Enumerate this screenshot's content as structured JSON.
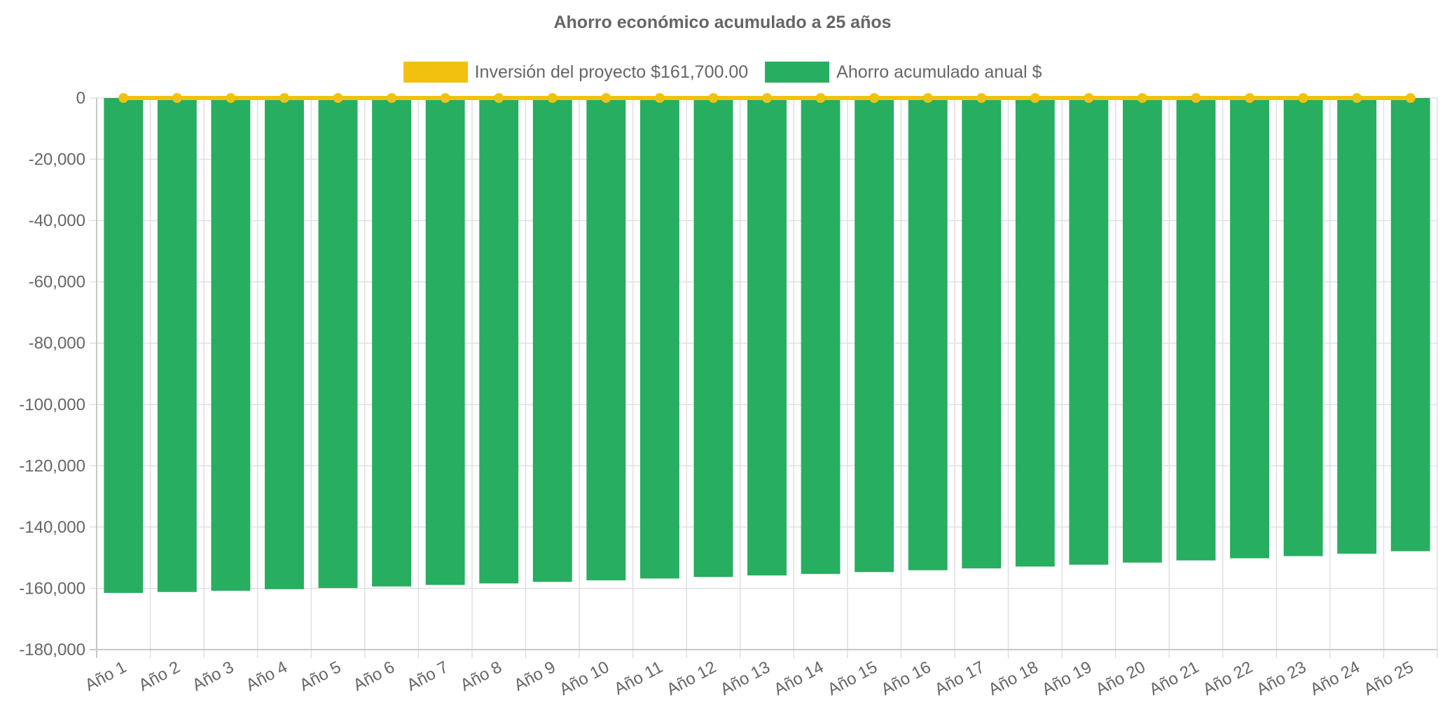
{
  "chart_data": {
    "type": "bar",
    "title": "Ahorro económico acumulado a 25 años",
    "categories": [
      "Año 1",
      "Año 2",
      "Año 3",
      "Año 4",
      "Año 5",
      "Año 6",
      "Año 7",
      "Año 8",
      "Año 9",
      "Año 10",
      "Año 11",
      "Año 12",
      "Año 13",
      "Año 14",
      "Año 15",
      "Año 16",
      "Año 17",
      "Año 18",
      "Año 19",
      "Año 20",
      "Año 21",
      "Año 22",
      "Año 23",
      "Año 24",
      "Año 25"
    ],
    "series": [
      {
        "name": "Inversión del proyecto $161,700.00",
        "type": "line",
        "color": "#f2c10f",
        "values": [
          0,
          0,
          0,
          0,
          0,
          0,
          0,
          0,
          0,
          0,
          0,
          0,
          0,
          0,
          0,
          0,
          0,
          0,
          0,
          0,
          0,
          0,
          0,
          0,
          0
        ]
      },
      {
        "name": "Ahorro acumulado anual $",
        "type": "bar",
        "color": "#27ae60",
        "values": [
          -161500,
          -161200,
          -160800,
          -160300,
          -159900,
          -159400,
          -158900,
          -158400,
          -157900,
          -157400,
          -156800,
          -156300,
          -155800,
          -155300,
          -154700,
          -154100,
          -153500,
          -152900,
          -152300,
          -151600,
          -150900,
          -150200,
          -149500,
          -148700,
          -147900
        ]
      }
    ],
    "ylim": [
      -180000,
      0
    ],
    "yticks": [
      0,
      -20000,
      -40000,
      -60000,
      -80000,
      -100000,
      -120000,
      -140000,
      -160000,
      -180000
    ],
    "ytick_labels": [
      "0",
      "-20,000",
      "-40,000",
      "-60,000",
      "-80,000",
      "-100,000",
      "-120,000",
      "-140,000",
      "-160,000",
      "-180,000"
    ],
    "grid": true,
    "legend_position": "top"
  }
}
